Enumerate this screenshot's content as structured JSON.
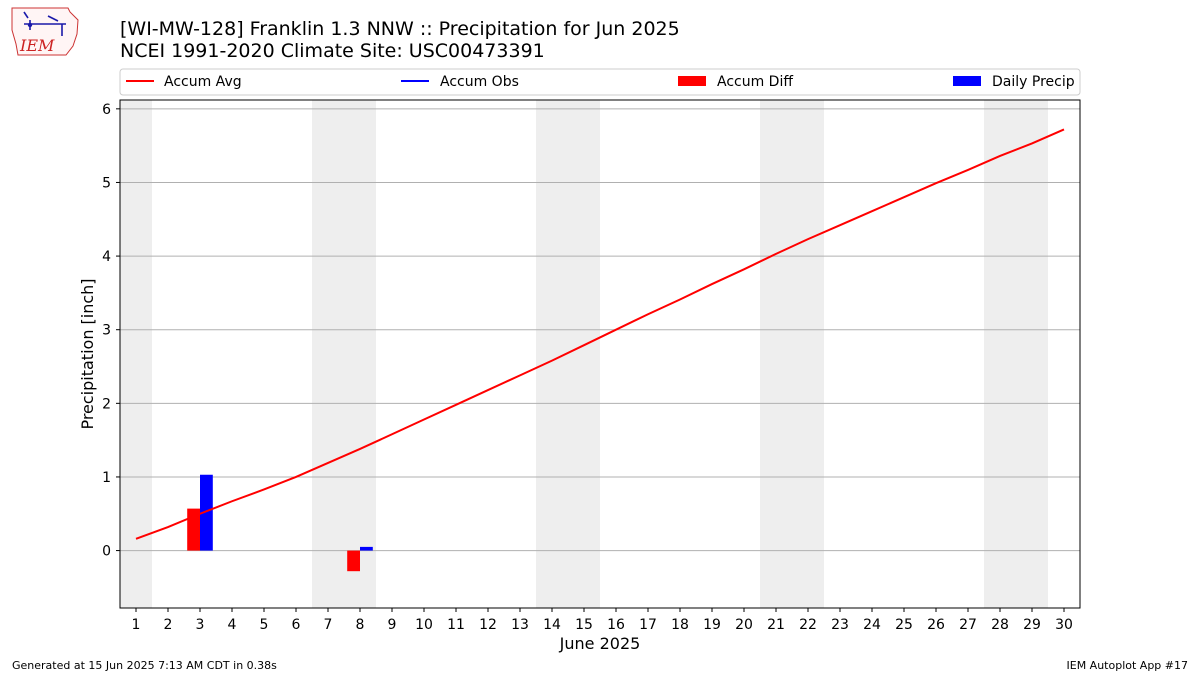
{
  "logo": {
    "text": "IEM"
  },
  "header": {
    "title_line1": "[WI-MW-128] Franklin 1.3 NNW :: Precipitation for Jun 2025",
    "title_line2": "NCEI 1991-2020 Climate Site: USC00473391"
  },
  "footer": {
    "left": "Generated at 15 Jun 2025 7:13 AM CDT in 0.38s",
    "right": "IEM Autoplot App #17"
  },
  "colors": {
    "accum_avg": "#ff0000",
    "accum_obs": "#0000ff",
    "accum_diff": "#ff0000",
    "daily_precip": "#0000ff",
    "weekend_band": "#eeeeee",
    "grid": "#b0b0b0"
  },
  "chart_data": {
    "type": "bar",
    "xlabel": "June 2025",
    "ylabel": "Precipitation [inch]",
    "xlim": [
      0.5,
      30.5
    ],
    "ylim": [
      -0.78,
      6.12
    ],
    "x_ticks": [
      "1",
      "2",
      "3",
      "4",
      "5",
      "6",
      "7",
      "8",
      "9",
      "10",
      "11",
      "12",
      "13",
      "14",
      "15",
      "16",
      "17",
      "18",
      "19",
      "20",
      "21",
      "22",
      "23",
      "24",
      "25",
      "26",
      "27",
      "28",
      "29",
      "30"
    ],
    "y_ticks": [
      "0",
      "1",
      "2",
      "3",
      "4",
      "5",
      "6"
    ],
    "grid": "horizontal",
    "legend": {
      "placement": "top",
      "entries": [
        "Accum Avg",
        "Accum Obs",
        "Accum Diff",
        "Daily Precip"
      ]
    },
    "weekend_days": [
      1,
      7,
      8,
      14,
      15,
      21,
      22,
      28,
      29
    ],
    "series": [
      {
        "name": "Accum Avg",
        "kind": "line",
        "x": [
          1,
          2,
          3,
          4,
          5,
          6,
          7,
          8,
          9,
          10,
          11,
          12,
          13,
          14,
          15,
          16,
          17,
          18,
          19,
          20,
          21,
          22,
          23,
          24,
          25,
          26,
          27,
          28,
          29,
          30
        ],
        "values": [
          0.16,
          0.32,
          0.5,
          0.67,
          0.83,
          1.0,
          1.19,
          1.38,
          1.58,
          1.78,
          1.98,
          2.18,
          2.38,
          2.58,
          2.79,
          3.0,
          3.21,
          3.41,
          3.62,
          3.82,
          4.03,
          4.23,
          4.42,
          4.61,
          4.8,
          4.99,
          5.17,
          5.36,
          5.53,
          5.72
        ]
      },
      {
        "name": "Accum Diff",
        "kind": "bar",
        "x": [
          3,
          8
        ],
        "values": [
          0.57,
          -0.28
        ]
      },
      {
        "name": "Daily Precip",
        "kind": "bar",
        "x": [
          3,
          8
        ],
        "values": [
          1.03,
          0.05
        ]
      }
    ]
  }
}
